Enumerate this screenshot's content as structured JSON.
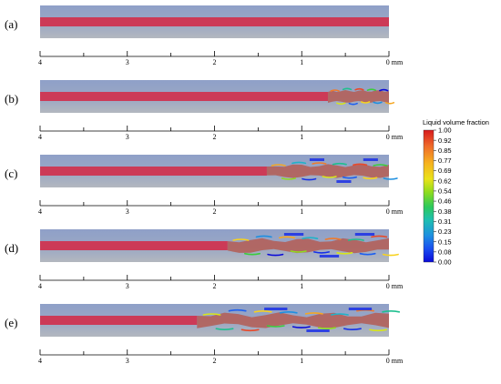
{
  "figure": {
    "panels": [
      {
        "label": "(a)",
        "breakup_start_mm": null,
        "spray_spread": 0.0
      },
      {
        "label": "(b)",
        "breakup_start_mm": 0.7,
        "spray_spread": 0.35
      },
      {
        "label": "(c)",
        "breakup_start_mm": 1.4,
        "spray_spread": 0.55
      },
      {
        "label": "(d)",
        "breakup_start_mm": 1.85,
        "spray_spread": 0.75
      },
      {
        "label": "(e)",
        "breakup_start_mm": 2.2,
        "spray_spread": 0.9
      }
    ],
    "axis": {
      "ticks": [
        "4",
        "3",
        "2",
        "1"
      ],
      "end_label": "0 mm",
      "range_mm": [
        4,
        0
      ]
    },
    "colorbar": {
      "title": "Liquid volume fraction",
      "labels": [
        "1.00",
        "0.92",
        "0.85",
        "0.77",
        "0.69",
        "0.62",
        "0.54",
        "0.46",
        "0.38",
        "0.31",
        "0.23",
        "0.15",
        "0.08",
        "0.00"
      ],
      "colors": [
        "#d7191c",
        "#e8492a",
        "#f07a2b",
        "#f5a623",
        "#f7d21e",
        "#d8e619",
        "#8fdc1e",
        "#3ccc3c",
        "#1fbf8f",
        "#20b2c8",
        "#1e8fe0",
        "#1c5ff0",
        "#1530e8",
        "#0a0ad8"
      ]
    },
    "colors": {
      "background": "#94a4c7",
      "background_bottom": "#aab2bf",
      "liquid": "#cc3a57"
    }
  }
}
